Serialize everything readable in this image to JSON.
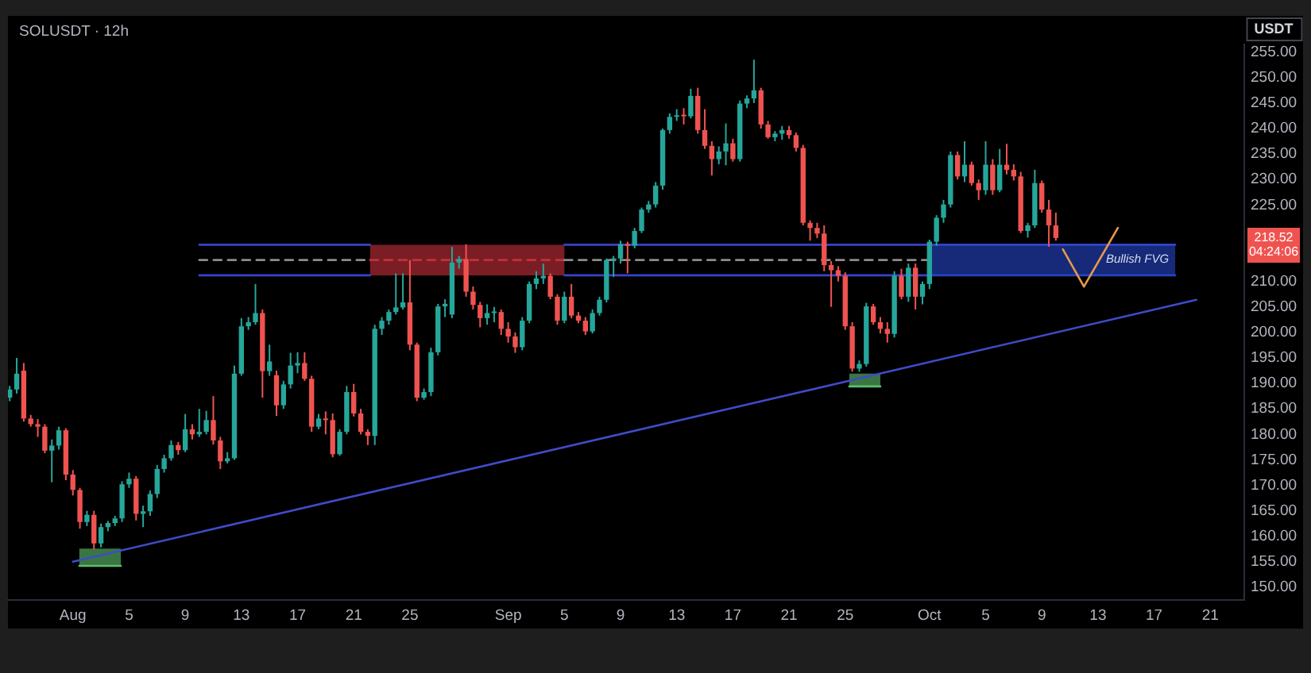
{
  "chart_data": {
    "type": "candlestick",
    "title": "SOLUSDT · 12h",
    "ylabel": "USDT",
    "xlim": [
      "--07-27T09:00",
      "--10-23T10:00"
    ],
    "xticks": [
      {
        "value": "--08-01",
        "label": "Aug"
      },
      {
        "value": "--08-05",
        "label": "5"
      },
      {
        "value": "--08-09",
        "label": "9"
      },
      {
        "value": "--08-13",
        "label": "13"
      },
      {
        "value": "--08-17",
        "label": "17"
      },
      {
        "value": "--08-21",
        "label": "21"
      },
      {
        "value": "--08-25",
        "label": "25"
      },
      {
        "value": "--09-01",
        "label": "Sep"
      },
      {
        "value": "--09-05",
        "label": "5"
      },
      {
        "value": "--09-09",
        "label": "9"
      },
      {
        "value": "--09-13",
        "label": "13"
      },
      {
        "value": "--09-17",
        "label": "17"
      },
      {
        "value": "--09-21",
        "label": "21"
      },
      {
        "value": "--09-25",
        "label": "25"
      },
      {
        "value": "--10-01",
        "label": "Oct"
      },
      {
        "value": "--10-05",
        "label": "5"
      },
      {
        "value": "--10-09",
        "label": "9"
      },
      {
        "value": "--10-13",
        "label": "13"
      },
      {
        "value": "--10-17",
        "label": "17"
      },
      {
        "value": "--10-21",
        "label": "21"
      }
    ],
    "ylim": [
      147.5,
      256.5
    ],
    "yticks": [
      {
        "value": 150,
        "label": "150.00"
      },
      {
        "value": 155,
        "label": "155.00"
      },
      {
        "value": 160,
        "label": "160.00"
      },
      {
        "value": 165,
        "label": "165.00"
      },
      {
        "value": 170,
        "label": "170.00"
      },
      {
        "value": 175,
        "label": "175.00"
      },
      {
        "value": 180,
        "label": "180.00"
      },
      {
        "value": 185,
        "label": "185.00"
      },
      {
        "value": 190,
        "label": "190.00"
      },
      {
        "value": 195,
        "label": "195.00"
      },
      {
        "value": 200,
        "label": "200.00"
      },
      {
        "value": 205,
        "label": "205.00"
      },
      {
        "value": 210,
        "label": "210.00"
      },
      {
        "value": 225,
        "label": "225.00"
      },
      {
        "value": 230,
        "label": "230.00"
      },
      {
        "value": 235,
        "label": "235.00"
      },
      {
        "value": 240,
        "label": "240.00"
      },
      {
        "value": 245,
        "label": "245.00"
      },
      {
        "value": 250,
        "label": "250.00"
      },
      {
        "value": 255,
        "label": "255.00"
      }
    ],
    "series": [
      {
        "type": "candlestick",
        "x": [
          "--07-27T12:00",
          "--07-28T00:00",
          "--07-28T12:00",
          "--07-29T00:00",
          "--07-29T12:00",
          "--07-30T00:00",
          "--07-30T12:00",
          "--07-31T00:00",
          "--07-31T12:00",
          "--08-01T00:00",
          "--08-01T12:00",
          "--08-02T00:00",
          "--08-02T12:00",
          "--08-03T00:00",
          "--08-03T12:00",
          "--08-04T00:00",
          "--08-04T12:00",
          "--08-05T00:00",
          "--08-05T12:00",
          "--08-06T00:00",
          "--08-06T12:00",
          "--08-07T00:00",
          "--08-07T12:00",
          "--08-08T00:00",
          "--08-08T12:00",
          "--08-09T00:00",
          "--08-09T12:00",
          "--08-10T00:00",
          "--08-10T12:00",
          "--08-11T00:00",
          "--08-11T12:00",
          "--08-12T00:00",
          "--08-12T12:00",
          "--08-13T00:00",
          "--08-13T12:00",
          "--08-14T00:00",
          "--08-14T12:00",
          "--08-15T00:00",
          "--08-15T12:00",
          "--08-16T00:00",
          "--08-16T12:00",
          "--08-17T00:00",
          "--08-17T12:00",
          "--08-18T00:00",
          "--08-18T12:00",
          "--08-19T00:00",
          "--08-19T12:00",
          "--08-20T00:00",
          "--08-20T12:00",
          "--08-21T00:00",
          "--08-21T12:00",
          "--08-22T00:00",
          "--08-22T12:00",
          "--08-23T00:00",
          "--08-23T12:00",
          "--08-24T00:00",
          "--08-24T12:00",
          "--08-25T00:00",
          "--08-25T12:00",
          "--08-26T00:00",
          "--08-26T12:00",
          "--08-27T00:00",
          "--08-27T12:00",
          "--08-28T00:00",
          "--08-28T12:00",
          "--08-29T00:00",
          "--08-29T12:00",
          "--08-30T00:00",
          "--08-30T12:00",
          "--08-31T00:00",
          "--08-31T12:00",
          "--09-01T00:00",
          "--09-01T12:00",
          "--09-02T00:00",
          "--09-02T12:00",
          "--09-03T00:00",
          "--09-03T12:00",
          "--09-04T00:00",
          "--09-04T12:00",
          "--09-05T00:00",
          "--09-05T12:00",
          "--09-06T00:00",
          "--09-06T12:00",
          "--09-07T00:00",
          "--09-07T12:00",
          "--09-08T00:00",
          "--09-08T12:00",
          "--09-09T00:00",
          "--09-09T12:00",
          "--09-10T00:00",
          "--09-10T12:00",
          "--09-11T00:00",
          "--09-11T12:00",
          "--09-12T00:00",
          "--09-12T12:00",
          "--09-13T00:00",
          "--09-13T12:00",
          "--09-14T00:00",
          "--09-14T12:00",
          "--09-15T00:00",
          "--09-15T12:00",
          "--09-16T00:00",
          "--09-16T12:00",
          "--09-17T00:00",
          "--09-17T12:00",
          "--09-18T00:00",
          "--09-18T12:00",
          "--09-19T00:00",
          "--09-19T12:00",
          "--09-20T00:00",
          "--09-20T12:00",
          "--09-21T00:00",
          "--09-21T12:00",
          "--09-22T00:00",
          "--09-22T12:00",
          "--09-23T00:00",
          "--09-23T12:00",
          "--09-24T00:00",
          "--09-24T12:00",
          "--09-25T00:00",
          "--09-25T12:00",
          "--09-26T00:00",
          "--09-26T12:00",
          "--09-27T00:00",
          "--09-27T12:00",
          "--09-28T00:00",
          "--09-28T12:00",
          "--09-29T00:00",
          "--09-29T12:00",
          "--09-30T00:00",
          "--09-30T12:00",
          "--10-01T00:00",
          "--10-01T12:00",
          "--10-02T00:00",
          "--10-02T12:00",
          "--10-03T00:00",
          "--10-03T12:00",
          "--10-04T00:00",
          "--10-04T12:00",
          "--10-05T00:00",
          "--10-05T12:00",
          "--10-06T00:00",
          "--10-06T12:00",
          "--10-07T00:00",
          "--10-07T12:00",
          "--10-08T00:00",
          "--10-08T12:00",
          "--10-09T00:00",
          "--10-09T12:00",
          "--10-10T00:00"
        ],
        "ohlc": [
          [
            187.2,
            189.5,
            186.5,
            188.8
          ],
          [
            188.8,
            195.0,
            188.0,
            191.9
          ],
          [
            192.5,
            194.0,
            182.5,
            183.1
          ],
          [
            183.1,
            183.8,
            181.5,
            182.0
          ],
          [
            182.0,
            183.0,
            179.5,
            181.5
          ],
          [
            181.5,
            182.0,
            176.3,
            176.8
          ],
          [
            176.8,
            179.0,
            170.6,
            177.8
          ],
          [
            177.8,
            181.5,
            177.0,
            180.8
          ],
          [
            180.8,
            181.2,
            171.0,
            172.1
          ],
          [
            172.1,
            173.0,
            168.0,
            169.1
          ],
          [
            169.1,
            169.5,
            161.5,
            162.8
          ],
          [
            162.8,
            165.0,
            162.0,
            164.2
          ],
          [
            164.2,
            165.0,
            157.4,
            158.6
          ],
          [
            158.6,
            162.5,
            157.8,
            161.8
          ],
          [
            161.8,
            163.0,
            161.0,
            162.6
          ],
          [
            162.6,
            164.0,
            162.0,
            163.5
          ],
          [
            163.5,
            170.8,
            162.8,
            170.2
          ],
          [
            170.2,
            172.5,
            169.5,
            171.3
          ],
          [
            171.3,
            171.8,
            163.1,
            164.4
          ],
          [
            164.4,
            166.0,
            161.8,
            164.9
          ],
          [
            164.9,
            169.0,
            164.0,
            168.3
          ],
          [
            168.3,
            174.0,
            167.5,
            173.2
          ],
          [
            173.2,
            176.0,
            172.5,
            175.3
          ],
          [
            175.3,
            178.8,
            174.8,
            177.9
          ],
          [
            177.9,
            178.5,
            176.0,
            176.9
          ],
          [
            176.9,
            184.0,
            176.5,
            181.0
          ],
          [
            181.0,
            182.0,
            179.0,
            180.0
          ],
          [
            180.0,
            185.0,
            179.5,
            180.5
          ],
          [
            180.5,
            184.6,
            180.0,
            182.8
          ],
          [
            182.8,
            187.5,
            178.0,
            178.8
          ],
          [
            178.8,
            179.5,
            173.2,
            174.7
          ],
          [
            174.7,
            176.5,
            174.3,
            175.3
          ],
          [
            175.3,
            193.5,
            175.0,
            191.9
          ],
          [
            191.9,
            202.8,
            191.5,
            201.2
          ],
          [
            201.2,
            203.0,
            200.5,
            202.0
          ],
          [
            202.0,
            209.5,
            201.5,
            203.8
          ],
          [
            203.8,
            204.5,
            187.2,
            192.4
          ],
          [
            192.4,
            197.6,
            191.5,
            194.3
          ],
          [
            191.6,
            192.5,
            183.6,
            185.7
          ],
          [
            185.7,
            190.5,
            185.0,
            189.8
          ],
          [
            189.8,
            196.0,
            189.0,
            193.5
          ],
          [
            193.5,
            196.1,
            192.0,
            194.0
          ],
          [
            194.0,
            196.1,
            190.5,
            190.9
          ],
          [
            190.9,
            191.5,
            180.5,
            181.5
          ],
          [
            181.5,
            184.0,
            181.0,
            183.1
          ],
          [
            183.1,
            184.5,
            180.0,
            182.8
          ],
          [
            182.8,
            184.1,
            175.5,
            176.1
          ],
          [
            176.1,
            181.0,
            175.8,
            180.5
          ],
          [
            180.5,
            189.5,
            180.0,
            188.3
          ],
          [
            188.3,
            189.9,
            183.5,
            184.1
          ],
          [
            184.1,
            185.0,
            180.0,
            180.5
          ],
          [
            180.5,
            181.0,
            177.9,
            179.7
          ],
          [
            179.7,
            201.5,
            177.9,
            200.7
          ],
          [
            200.7,
            203.0,
            199.5,
            202.3
          ],
          [
            202.3,
            204.5,
            201.5,
            204.0
          ],
          [
            204.0,
            211.6,
            203.5,
            204.9
          ],
          [
            204.9,
            211.6,
            204.5,
            205.9
          ],
          [
            205.9,
            214.2,
            196.5,
            197.6
          ],
          [
            197.6,
            198.0,
            186.5,
            187.2
          ],
          [
            187.2,
            189.0,
            186.8,
            188.3
          ],
          [
            188.3,
            197.0,
            187.5,
            196.1
          ],
          [
            196.1,
            205.6,
            195.5,
            205.1
          ],
          [
            205.1,
            206.5,
            203.0,
            205.6
          ],
          [
            203.5,
            216.8,
            202.8,
            213.7
          ],
          [
            213.7,
            215.0,
            212.5,
            214.4
          ],
          [
            214.4,
            217.3,
            207.0,
            208.0
          ],
          [
            208.0,
            209.0,
            204.5,
            205.4
          ],
          [
            205.4,
            206.0,
            201.0,
            202.8
          ],
          [
            202.8,
            205.5,
            201.5,
            203.8
          ],
          [
            203.8,
            205.0,
            202.0,
            204.0
          ],
          [
            204.0,
            204.5,
            199.5,
            200.7
          ],
          [
            200.7,
            202.0,
            198.0,
            199.2
          ],
          [
            199.2,
            200.0,
            196.0,
            197.1
          ],
          [
            197.1,
            203.0,
            196.5,
            202.3
          ],
          [
            202.3,
            210.0,
            201.8,
            209.5
          ],
          [
            209.5,
            212.0,
            208.5,
            210.6
          ],
          [
            210.6,
            213.5,
            209.5,
            211.1
          ],
          [
            211.1,
            211.6,
            206.5,
            207.0
          ],
          [
            207.0,
            207.5,
            201.5,
            202.3
          ],
          [
            202.3,
            208.0,
            201.8,
            207.0
          ],
          [
            207.0,
            209.5,
            202.8,
            203.3
          ],
          [
            203.3,
            204.0,
            201.8,
            202.3
          ],
          [
            202.3,
            203.0,
            199.5,
            200.2
          ],
          [
            200.2,
            204.5,
            199.8,
            203.8
          ],
          [
            203.8,
            207.0,
            203.3,
            206.4
          ],
          [
            206.4,
            214.5,
            205.9,
            214.2
          ],
          [
            214.2,
            215.0,
            210.9,
            214.5
          ],
          [
            214.5,
            218.0,
            213.5,
            217.3
          ],
          [
            217.3,
            217.8,
            211.6,
            217.0
          ],
          [
            217.0,
            220.5,
            216.5,
            219.9
          ],
          [
            219.9,
            224.5,
            219.5,
            224.1
          ],
          [
            224.1,
            225.8,
            223.5,
            225.1
          ],
          [
            225.1,
            229.5,
            224.5,
            228.8
          ],
          [
            228.8,
            240.0,
            228.0,
            239.7
          ],
          [
            239.7,
            243.0,
            239.0,
            242.3
          ],
          [
            242.3,
            243.8,
            241.5,
            242.6
          ],
          [
            242.6,
            244.0,
            240.8,
            242.4
          ],
          [
            242.4,
            247.8,
            242.0,
            246.4
          ],
          [
            246.4,
            248.0,
            239.0,
            239.7
          ],
          [
            239.7,
            243.8,
            236.0,
            236.6
          ],
          [
            236.6,
            237.5,
            230.8,
            234.0
          ],
          [
            234.0,
            236.5,
            233.0,
            235.5
          ],
          [
            235.5,
            241.0,
            232.8,
            237.1
          ],
          [
            237.1,
            238.0,
            233.5,
            234.0
          ],
          [
            234.0,
            245.5,
            233.5,
            244.9
          ],
          [
            244.9,
            246.5,
            244.0,
            245.9
          ],
          [
            245.9,
            253.5,
            245.0,
            247.5
          ],
          [
            247.5,
            248.0,
            240.0,
            240.8
          ],
          [
            240.8,
            241.5,
            238.0,
            238.3
          ],
          [
            238.3,
            239.5,
            237.5,
            239.0
          ],
          [
            239.0,
            240.5,
            237.8,
            239.7
          ],
          [
            239.7,
            240.5,
            238.0,
            238.7
          ],
          [
            238.7,
            239.2,
            235.5,
            236.2
          ],
          [
            236.2,
            236.8,
            221.0,
            221.5
          ],
          [
            221.5,
            222.0,
            218.0,
            220.5
          ],
          [
            220.5,
            221.5,
            218.5,
            219.4
          ],
          [
            219.4,
            221.0,
            212.0,
            213.2
          ],
          [
            213.2,
            214.0,
            205.0,
            212.2
          ],
          [
            212.2,
            213.0,
            210.0,
            211.1
          ],
          [
            211.1,
            211.8,
            200.5,
            201.2
          ],
          [
            201.2,
            202.0,
            192.3,
            192.9
          ],
          [
            192.9,
            194.5,
            192.3,
            193.8
          ],
          [
            193.8,
            205.8,
            193.3,
            205.1
          ],
          [
            205.1,
            205.6,
            201.5,
            202.0
          ],
          [
            202.0,
            203.0,
            199.8,
            200.7
          ],
          [
            200.7,
            202.0,
            198.0,
            199.7
          ],
          [
            199.7,
            212.0,
            199.0,
            211.1
          ],
          [
            211.1,
            212.5,
            206.5,
            207.0
          ],
          [
            207.0,
            213.5,
            206.0,
            212.7
          ],
          [
            212.7,
            213.5,
            204.5,
            207.0
          ],
          [
            207.0,
            210.0,
            205.5,
            209.5
          ],
          [
            209.5,
            218.2,
            208.5,
            217.8
          ],
          [
            217.8,
            223.0,
            217.0,
            222.5
          ],
          [
            222.5,
            226.0,
            221.5,
            225.1
          ],
          [
            225.1,
            235.5,
            224.5,
            234.8
          ],
          [
            234.8,
            235.5,
            230.0,
            230.6
          ],
          [
            230.6,
            237.5,
            229.5,
            232.9
          ],
          [
            232.9,
            233.5,
            228.8,
            229.3
          ],
          [
            229.3,
            230.0,
            226.0,
            227.9
          ],
          [
            227.9,
            237.5,
            227.0,
            232.9
          ],
          [
            232.9,
            234.0,
            227.0,
            227.9
          ],
          [
            227.9,
            236.0,
            227.5,
            232.9
          ],
          [
            232.9,
            237.0,
            231.0,
            231.9
          ],
          [
            231.9,
            233.0,
            229.8,
            230.6
          ],
          [
            230.6,
            231.5,
            219.5,
            219.9
          ],
          [
            219.9,
            221.5,
            218.6,
            221.0
          ],
          [
            221.0,
            231.9,
            220.5,
            229.3
          ],
          [
            229.3,
            229.8,
            223.5,
            224.1
          ],
          [
            224.1,
            226.0,
            216.8,
            221.0
          ],
          [
            221.0,
            223.5,
            218.0,
            218.52
          ]
        ],
        "colors": [
          "#26a69a",
          "#26a69a",
          "#ef5350",
          "#ef5350",
          "#ef5350",
          "#ef5350",
          "#26a69a",
          "#26a69a",
          "#ef5350",
          "#ef5350",
          "#ef5350",
          "#26a69a",
          "#ef5350",
          "#26a69a",
          "#26a69a",
          "#26a69a",
          "#26a69a",
          "#26a69a",
          "#ef5350",
          "#26a69a",
          "#26a69a",
          "#26a69a",
          "#26a69a",
          "#26a69a",
          "#ef5350",
          "#26a69a",
          "#ef5350",
          "#26a69a",
          "#26a69a",
          "#ef5350",
          "#ef5350",
          "#26a69a",
          "#26a69a",
          "#26a69a",
          "#26a69a",
          "#26a69a",
          "#ef5350",
          "#26a69a",
          "#ef5350",
          "#26a69a",
          "#26a69a",
          "#26a69a",
          "#ef5350",
          "#ef5350",
          "#26a69a",
          "#ef5350",
          "#ef5350",
          "#26a69a",
          "#26a69a",
          "#ef5350",
          "#ef5350",
          "#ef5350",
          "#26a69a",
          "#26a69a",
          "#26a69a",
          "#26a69a",
          "#26a69a",
          "#ef5350",
          "#ef5350",
          "#26a69a",
          "#26a69a",
          "#26a69a",
          "#26a69a",
          "#26a69a",
          "#26a69a",
          "#ef5350",
          "#ef5350",
          "#ef5350",
          "#26a69a",
          "#26a69a",
          "#ef5350",
          "#ef5350",
          "#ef5350",
          "#26a69a",
          "#26a69a",
          "#26a69a",
          "#26a69a",
          "#ef5350",
          "#ef5350",
          "#26a69a",
          "#ef5350",
          "#ef5350",
          "#ef5350",
          "#26a69a",
          "#26a69a",
          "#26a69a",
          "#26a69a",
          "#26a69a",
          "#ef5350",
          "#26a69a",
          "#26a69a",
          "#26a69a",
          "#26a69a",
          "#26a69a",
          "#26a69a",
          "#26a69a",
          "#ef5350",
          "#26a69a",
          "#ef5350",
          "#ef5350",
          "#ef5350",
          "#26a69a",
          "#26a69a",
          "#ef5350",
          "#26a69a",
          "#26a69a",
          "#26a69a",
          "#ef5350",
          "#ef5350",
          "#26a69a",
          "#26a69a",
          "#ef5350",
          "#ef5350",
          "#ef5350",
          "#ef5350",
          "#ef5350",
          "#ef5350",
          "#ef5350",
          "#ef5350",
          "#ef5350",
          "#ef5350",
          "#26a69a",
          "#26a69a",
          "#ef5350",
          "#ef5350",
          "#ef5350",
          "#26a69a",
          "#ef5350",
          "#26a69a",
          "#ef5350",
          "#26a69a",
          "#26a69a",
          "#26a69a",
          "#26a69a",
          "#26a69a",
          "#ef5350",
          "#26a69a",
          "#ef5350",
          "#ef5350",
          "#26a69a",
          "#ef5350",
          "#26a69a",
          "#ef5350",
          "#ef5350",
          "#ef5350",
          "#26a69a",
          "#26a69a",
          "#ef5350",
          "#ef5350",
          "#ef5350"
        ]
      },
      {
        "type": "line",
        "x": [
          "--08-01",
          "--10-20"
        ],
        "values": [
          155.0,
          206.4
        ],
        "color": "#3f4bc8"
      },
      {
        "type": "line",
        "x": [
          "--08-22T04:00",
          "--09-05T00:00"
        ],
        "values": [
          214.2,
          214.2
        ],
        "lower": [
          211.2,
          211.2
        ],
        "upper": [
          217.2,
          217.2
        ],
        "color": "#c62f3c",
        "line_style": "dashed"
      },
      {
        "type": "line",
        "name": "Bullish FVG",
        "x": [
          "--10-01",
          "--10-18T12:00"
        ],
        "values": [
          211.2,
          211.2
        ],
        "lower": [
          211.2,
          211.2
        ],
        "upper": [
          217.4,
          217.4
        ],
        "color": "#2443c4"
      },
      {
        "type": "line",
        "x": [
          "--08-10",
          "--08-22T04:00",
          "--08-29",
          "--09-05T00:00",
          "--10-18T12:00"
        ],
        "values": [
          217.2,
          217.2,
          null,
          217.2,
          217.2
        ],
        "color": "#3344cc"
      },
      {
        "type": "line",
        "x": [
          "--08-10",
          "--08-22T04:00",
          "--08-29",
          "--09-05T00:00",
          "--10-01"
        ],
        "values": [
          211.2,
          211.2,
          null,
          211.2,
          211.2
        ],
        "color": "#3344cc"
      },
      {
        "type": "line",
        "x": [
          "--08-10",
          "--08-22T04:00"
        ],
        "values": [
          214.2,
          214.2
        ],
        "color": "#8c8c8c",
        "line_style": "dashed"
      },
      {
        "type": "line",
        "x": [
          "--09-05T00:00",
          "--10-01"
        ],
        "values": [
          214.2,
          214.2
        ],
        "color": "#8c8c8c",
        "line_style": "dashed"
      },
      {
        "type": "line",
        "x": [
          "--10-10T12:00",
          "--10-12",
          "--10-14T10:00"
        ],
        "values": [
          216.3,
          209.0,
          220.5
        ],
        "color": "#e8994a"
      },
      {
        "type": "line",
        "x": [
          "--08-01T11:00",
          "--08-04T10:00"
        ],
        "values": [
          154.2,
          154.2
        ],
        "lower": [
          154.2,
          154.2
        ],
        "upper": [
          157.6,
          157.6
        ],
        "color": "#5cbf6c"
      },
      {
        "type": "line",
        "x": [
          "--09-25T07:00",
          "--09-27T12:00"
        ],
        "values": [
          189.4,
          189.4
        ],
        "lower": [
          189.4,
          189.4
        ],
        "upper": [
          191.9,
          191.9
        ],
        "color": "#5cbf6c"
      }
    ],
    "annotations": [
      "218.52",
      "04:24:06"
    ]
  }
}
